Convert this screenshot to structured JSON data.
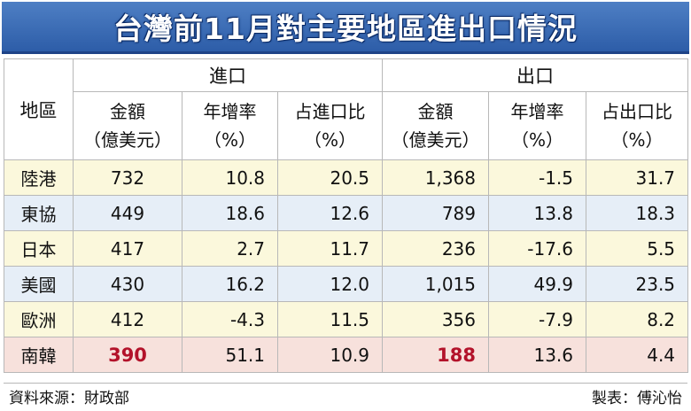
{
  "title": "台灣前11月對主要地區進出口情況",
  "header": {
    "region": "地區",
    "import_group": "進口",
    "export_group": "出口",
    "import_amount": "金額\n（億美元）",
    "import_growth": "年增率\n（%）",
    "import_share": "占進口比\n（%）",
    "export_amount": "金額\n（億美元）",
    "export_growth": "年增率\n（%）",
    "export_share": "占出口比\n（%）"
  },
  "rows": [
    {
      "region": "陸港",
      "imp_amount": "732",
      "imp_growth": "10.8",
      "imp_share": "20.5",
      "exp_amount": "1,368",
      "exp_growth": "-1.5",
      "exp_share": "31.7"
    },
    {
      "region": "東協",
      "imp_amount": "449",
      "imp_growth": "18.6",
      "imp_share": "12.6",
      "exp_amount": "789",
      "exp_growth": "13.8",
      "exp_share": "18.3"
    },
    {
      "region": "日本",
      "imp_amount": "417",
      "imp_growth": "2.7",
      "imp_share": "11.7",
      "exp_amount": "236",
      "exp_growth": "-17.6",
      "exp_share": "5.5"
    },
    {
      "region": "美國",
      "imp_amount": "430",
      "imp_growth": "16.2",
      "imp_share": "12.0",
      "exp_amount": "1,015",
      "exp_growth": "49.9",
      "exp_share": "23.5"
    },
    {
      "region": "歐洲",
      "imp_amount": "412",
      "imp_growth": "-4.3",
      "imp_share": "11.5",
      "exp_amount": "356",
      "exp_growth": "-7.9",
      "exp_share": "8.2"
    },
    {
      "region": "南韓",
      "imp_amount": "390",
      "imp_growth": "51.1",
      "imp_share": "10.9",
      "exp_amount": "188",
      "exp_growth": "13.6",
      "exp_share": "4.4"
    }
  ],
  "footer": {
    "source": "資料來源：財政部",
    "credit": "製表：傅沁怡"
  },
  "colors": {
    "title_bg": "#3b6cb5",
    "highlight": "#b3122a",
    "row_yellow": "#fbf8dc",
    "row_blue": "#e6eef7",
    "row_pink": "#f7e1dc"
  },
  "chart_data": {
    "type": "table",
    "title": "台灣前11月對主要地區進出口情況",
    "columns": [
      "地區",
      "進口 金額（億美元）",
      "進口 年增率（%）",
      "進口 占進口比（%）",
      "出口 金額（億美元）",
      "出口 年增率（%）",
      "出口 占出口比（%）"
    ],
    "rows": [
      [
        "陸港",
        732,
        10.8,
        20.5,
        1368,
        -1.5,
        31.7
      ],
      [
        "東協",
        449,
        18.6,
        12.6,
        789,
        13.8,
        18.3
      ],
      [
        "日本",
        417,
        2.7,
        11.7,
        236,
        -17.6,
        5.5
      ],
      [
        "美國",
        430,
        16.2,
        12.0,
        1015,
        49.9,
        23.5
      ],
      [
        "歐洲",
        412,
        -4.3,
        11.5,
        356,
        -7.9,
        8.2
      ],
      [
        "南韓",
        390,
        51.1,
        10.9,
        188,
        13.6,
        4.4
      ]
    ]
  }
}
